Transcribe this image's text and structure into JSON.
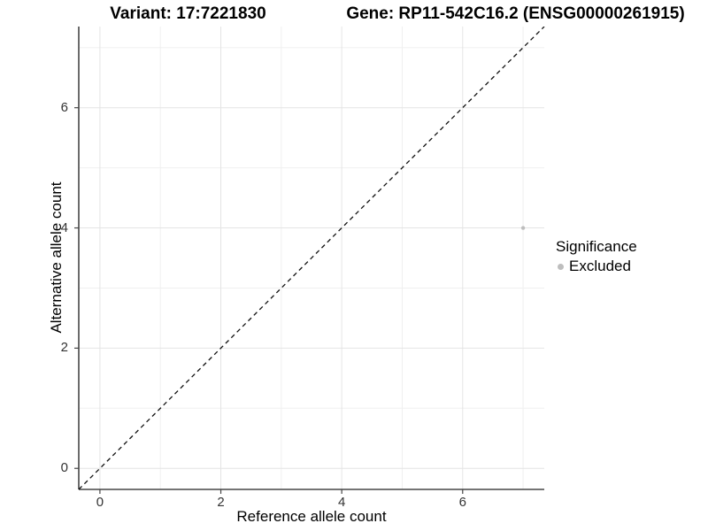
{
  "chart_data": {
    "type": "scatter",
    "title_left": "Variant: 17:7221830",
    "title_right": "Gene: RP11-542C16.2 (ENSG00000261915)",
    "xlabel": "Reference allele count",
    "ylabel": "Alternative allele count",
    "xlim": [
      -0.35,
      7.35
    ],
    "ylim": [
      -0.35,
      7.35
    ],
    "x_ticks": [
      0,
      2,
      4,
      6
    ],
    "y_ticks": [
      0,
      2,
      4,
      6
    ],
    "x_minor_ticks": [
      1,
      3,
      5,
      7
    ],
    "y_minor_ticks": [
      1,
      3,
      5,
      7
    ],
    "grid": true,
    "legend": {
      "title": "Significance",
      "position": "right",
      "entries": [
        {
          "label": "Excluded",
          "color": "#bebebe"
        }
      ]
    },
    "reference_line": {
      "type": "identity y=x",
      "style": "dashed",
      "color": "#111111"
    },
    "series": [
      {
        "name": "Excluded",
        "color": "#bebebe",
        "points": [
          {
            "x": 7,
            "y": 4
          }
        ]
      }
    ],
    "colors": {
      "major_grid": "#e4e4e4",
      "minor_grid": "#f0f0f0",
      "axis_line": "#464646",
      "axis_text": "#333333"
    }
  }
}
